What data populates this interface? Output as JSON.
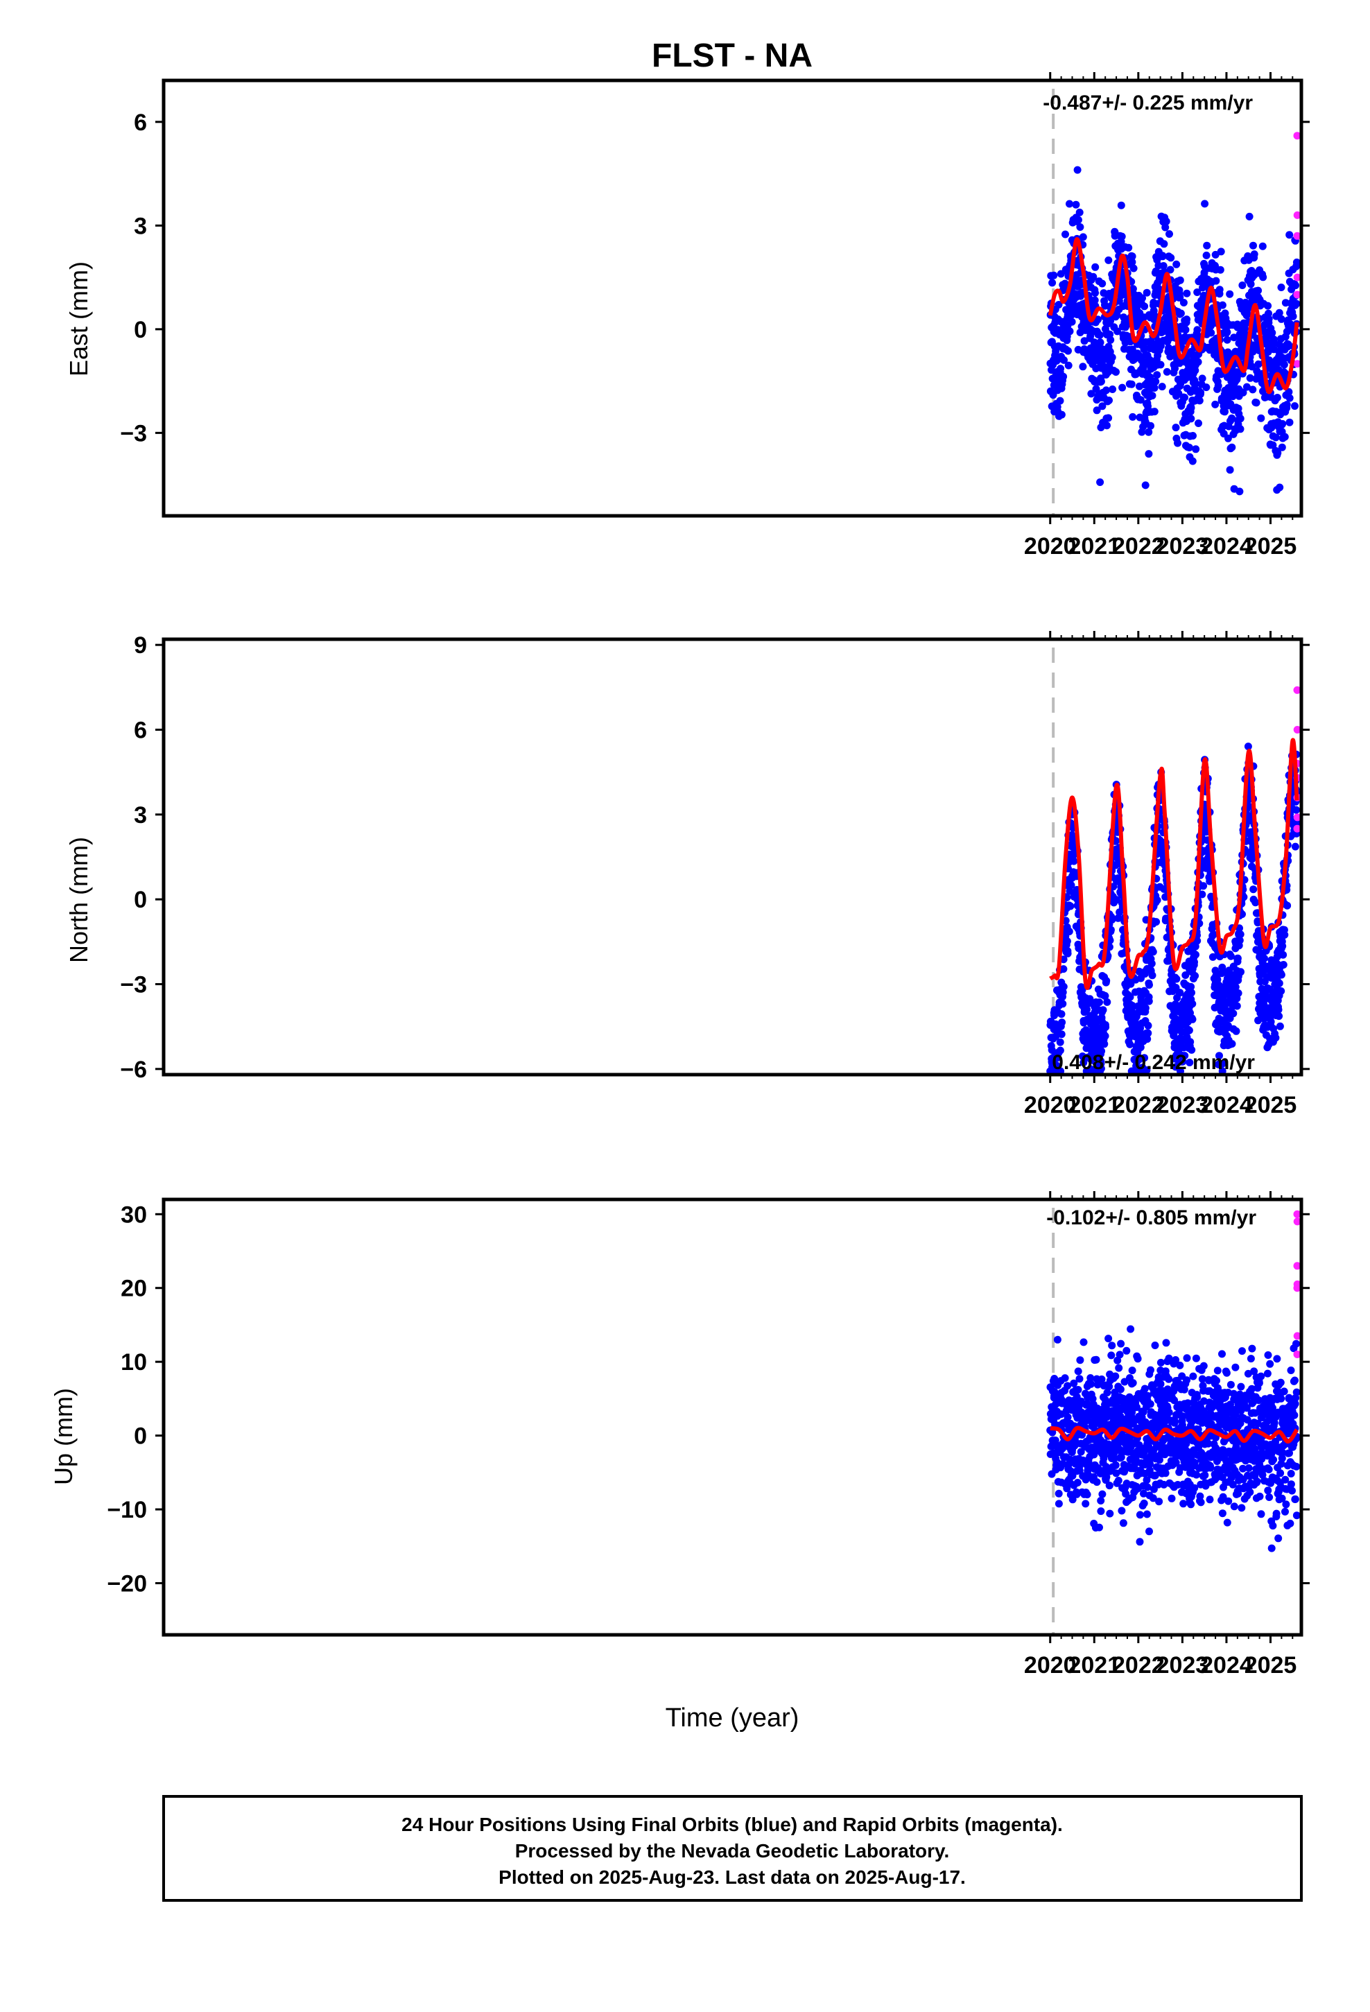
{
  "title": "FLST - NA",
  "colors": {
    "final": "#0000ff",
    "rapid": "#ff22ff",
    "fit": "#ff0000",
    "marker": "#bbbbbb",
    "frame": "#000000"
  },
  "xlabel": "Time (year)",
  "footer": {
    "line1": "24 Hour Positions Using Final Orbits (blue) and Rapid Orbits (magenta).",
    "line2": "Processed by the Nevada Geodetic Laboratory.",
    "line3": "Plotted on 2025-Aug-23. Last data on 2025-Aug-17."
  },
  "chart_data": [
    {
      "type": "scatter",
      "key": "east",
      "ylabel": "East (mm)",
      "rate": "-0.487+/- 0.225 mm/yr",
      "rate_position": "top-right",
      "xlim": [
        1999.88,
        2025.7
      ],
      "ylim": [
        -5.4,
        7.2
      ],
      "xticks": [
        2020,
        2021,
        2022,
        2023,
        2024,
        2025
      ],
      "yticks": [
        -3,
        0,
        3,
        6
      ],
      "equipment_change_year": 2020.07,
      "model": {
        "offset": 0.45,
        "rate": -0.25,
        "annual_amp": 1.2,
        "annual_peak": 0.62,
        "semiannual_amp": 0.35,
        "noise_sd": 1.05
      },
      "fit_points": [
        [
          2020.0,
          0.4
        ],
        [
          2020.1,
          1.0
        ],
        [
          2020.2,
          1.1
        ],
        [
          2020.3,
          0.8
        ],
        [
          2020.45,
          1.3
        ],
        [
          2020.6,
          2.6
        ],
        [
          2020.75,
          1.7
        ],
        [
          2020.9,
          0.3
        ],
        [
          2021.1,
          0.6
        ],
        [
          2021.3,
          0.4
        ],
        [
          2021.45,
          0.7
        ],
        [
          2021.62,
          2.1
        ],
        [
          2021.75,
          1.5
        ],
        [
          2021.9,
          -0.3
        ],
        [
          2022.15,
          0.2
        ],
        [
          2022.35,
          -0.2
        ],
        [
          2022.5,
          0.5
        ],
        [
          2022.65,
          1.6
        ],
        [
          2022.8,
          0.5
        ],
        [
          2022.95,
          -0.8
        ],
        [
          2023.2,
          -0.3
        ],
        [
          2023.4,
          -0.6
        ],
        [
          2023.5,
          0.2
        ],
        [
          2023.65,
          1.2
        ],
        [
          2023.8,
          0.2
        ],
        [
          2023.95,
          -1.2
        ],
        [
          2024.2,
          -0.8
        ],
        [
          2024.4,
          -1.2
        ],
        [
          2024.5,
          -0.4
        ],
        [
          2024.65,
          0.7
        ],
        [
          2024.8,
          -0.5
        ],
        [
          2024.95,
          -1.8
        ],
        [
          2025.15,
          -1.3
        ],
        [
          2025.35,
          -1.7
        ],
        [
          2025.5,
          -0.9
        ],
        [
          2025.6,
          0.2
        ]
      ],
      "rapid_values": [
        5.6,
        3.3,
        2.7,
        1.5,
        1.0,
        -1.0
      ]
    },
    {
      "type": "scatter",
      "key": "north",
      "ylabel": "North (mm)",
      "rate": "0.408+/- 0.242 mm/yr",
      "rate_position": "bottom-right",
      "xlim": [
        1999.88,
        2025.7
      ],
      "ylim": [
        -6.2,
        9.2
      ],
      "xticks": [
        2020,
        2021,
        2022,
        2023,
        2024,
        2025
      ],
      "yticks": [
        -6,
        -3,
        0,
        3,
        6,
        9
      ],
      "equipment_change_year": 2020.07,
      "model": {
        "offset": -2.8,
        "rate": 0.4,
        "annual_amp": 3.6,
        "annual_peak": 0.5,
        "semiannual_amp": 0.9,
        "noise_sd": 1.0
      },
      "fit_points": [
        [
          2020.0,
          -2.8
        ],
        [
          2020.1,
          -2.7
        ],
        [
          2020.2,
          -2.4
        ],
        [
          2020.35,
          1.5
        ],
        [
          2020.5,
          3.6
        ],
        [
          2020.65,
          1.5
        ],
        [
          2020.8,
          -2.9
        ],
        [
          2020.95,
          -2.5
        ],
        [
          2021.1,
          -2.3
        ],
        [
          2021.25,
          -1.7
        ],
        [
          2021.5,
          4.0
        ],
        [
          2021.65,
          1.0
        ],
        [
          2021.8,
          -2.6
        ],
        [
          2022.0,
          -2.0
        ],
        [
          2022.1,
          -1.9
        ],
        [
          2022.25,
          -1.0
        ],
        [
          2022.5,
          4.4
        ],
        [
          2022.6,
          3.0
        ],
        [
          2022.8,
          -2.2
        ],
        [
          2023.0,
          -1.7
        ],
        [
          2023.15,
          -1.5
        ],
        [
          2023.3,
          -0.7
        ],
        [
          2023.5,
          4.9
        ],
        [
          2023.65,
          2.0
        ],
        [
          2023.85,
          -1.7
        ],
        [
          2024.0,
          -1.3
        ],
        [
          2024.15,
          -1.1
        ],
        [
          2024.3,
          0.0
        ],
        [
          2024.5,
          5.2
        ],
        [
          2024.65,
          2.5
        ],
        [
          2024.85,
          -1.5
        ],
        [
          2025.0,
          -1.0
        ],
        [
          2025.2,
          -0.7
        ],
        [
          2025.35,
          1.5
        ],
        [
          2025.5,
          5.6
        ],
        [
          2025.6,
          3.5
        ]
      ],
      "rapid_values": [
        7.4,
        6.0,
        4.8,
        4.3,
        3.6,
        2.9,
        2.5
      ]
    },
    {
      "type": "scatter",
      "key": "up",
      "ylabel": "Up (mm)",
      "rate": "-0.102+/- 0.805 mm/yr",
      "rate_position": "top-right",
      "xlim": [
        1999.88,
        2025.7
      ],
      "ylim": [
        -27,
        32
      ],
      "xticks": [
        2020,
        2021,
        2022,
        2023,
        2024,
        2025
      ],
      "yticks": [
        -20,
        -10,
        0,
        10,
        20,
        30
      ],
      "equipment_change_year": 2020.07,
      "model": {
        "offset": 0.5,
        "rate": -0.1,
        "annual_amp": 0.6,
        "annual_peak": 0.7,
        "semiannual_amp": 0.2,
        "noise_sd": 4.8
      },
      "fit_points": [
        [
          2020.0,
          1.0
        ],
        [
          2020.2,
          0.8
        ],
        [
          2020.4,
          -0.5
        ],
        [
          2020.6,
          1.0
        ],
        [
          2020.8,
          0.6
        ],
        [
          2021.0,
          0.3
        ],
        [
          2021.2,
          0.8
        ],
        [
          2021.4,
          -0.3
        ],
        [
          2021.6,
          0.9
        ],
        [
          2021.8,
          0.5
        ],
        [
          2022.0,
          0.0
        ],
        [
          2022.2,
          0.6
        ],
        [
          2022.4,
          -0.5
        ],
        [
          2022.6,
          0.8
        ],
        [
          2022.8,
          0.2
        ],
        [
          2023.0,
          0.0
        ],
        [
          2023.2,
          0.6
        ],
        [
          2023.4,
          -0.5
        ],
        [
          2023.6,
          0.7
        ],
        [
          2023.8,
          0.3
        ],
        [
          2024.0,
          -0.2
        ],
        [
          2024.2,
          0.6
        ],
        [
          2024.4,
          -0.7
        ],
        [
          2024.6,
          0.6
        ],
        [
          2024.8,
          0.3
        ],
        [
          2025.0,
          -0.3
        ],
        [
          2025.2,
          0.5
        ],
        [
          2025.4,
          -0.8
        ],
        [
          2025.6,
          0.8
        ]
      ],
      "rapid_values": [
        30.0,
        29.0,
        23.0,
        20.5,
        20.0,
        13.5,
        11.0
      ]
    }
  ]
}
